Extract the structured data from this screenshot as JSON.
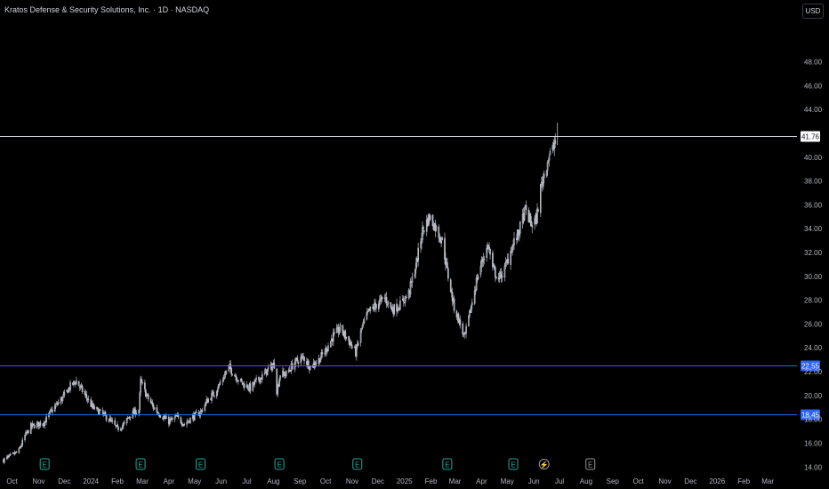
{
  "header": {
    "title": "Kratos Defense & Security Solutions, Inc. · 1D · NASDAQ",
    "currency_label": "USD"
  },
  "colors": {
    "background": "#000000",
    "candle": "#b8bcc6",
    "hline_blue": "#2962ff",
    "hline_white": "#d1d4dc",
    "axis_text": "#b2b5be",
    "earnings_icon": "#26a69a"
  },
  "price_tags": {
    "last": "41.76",
    "level_upper": "22.55",
    "level_lower": "18.45"
  },
  "event_icons": [
    {
      "label": "E",
      "type": "earnings",
      "date": "2023-11-08"
    },
    {
      "label": "E",
      "type": "earnings",
      "date": "2024-02-28"
    },
    {
      "label": "E",
      "type": "earnings",
      "date": "2024-05-08"
    },
    {
      "label": "E",
      "type": "earnings",
      "date": "2024-08-08"
    },
    {
      "label": "E",
      "type": "earnings",
      "date": "2024-11-07"
    },
    {
      "label": "E",
      "type": "earnings",
      "date": "2025-02-20"
    },
    {
      "label": "E",
      "type": "earnings",
      "date": "2025-05-08"
    },
    {
      "label": "⚡",
      "type": "dividend",
      "date": "2025-06-13"
    },
    {
      "label": "E",
      "type": "upcoming-earnings",
      "date": "2025-08-06"
    }
  ],
  "chart_data": {
    "type": "candlestick",
    "title": "Kratos Defense & Security Solutions, Inc. · 1D · NASDAQ",
    "y_axis": {
      "ticks": [
        "14.00",
        "16.00",
        "18.00",
        "20.00",
        "22.00",
        "24.00",
        "26.00",
        "28.00",
        "30.00",
        "32.00",
        "34.00",
        "36.00",
        "38.00",
        "40.00",
        "42.00",
        "44.00",
        "46.00",
        "48.00"
      ],
      "range": [
        13.2,
        50.5
      ]
    },
    "x_axis": {
      "ticks": [
        {
          "label": "Oct",
          "date": "2023-10-01"
        },
        {
          "label": "Nov",
          "date": "2023-11-01"
        },
        {
          "label": "Dec",
          "date": "2023-12-01"
        },
        {
          "label": "2024",
          "date": "2024-01-01"
        },
        {
          "label": "Feb",
          "date": "2024-02-01"
        },
        {
          "label": "Mar",
          "date": "2024-03-01"
        },
        {
          "label": "Apr",
          "date": "2024-04-01"
        },
        {
          "label": "May",
          "date": "2024-05-01"
        },
        {
          "label": "Jun",
          "date": "2024-06-01"
        },
        {
          "label": "Jul",
          "date": "2024-07-01"
        },
        {
          "label": "Aug",
          "date": "2024-08-01"
        },
        {
          "label": "Sep",
          "date": "2024-09-01"
        },
        {
          "label": "Oct",
          "date": "2024-10-01"
        },
        {
          "label": "Nov",
          "date": "2024-11-01"
        },
        {
          "label": "Dec",
          "date": "2024-12-01"
        },
        {
          "label": "2025",
          "date": "2025-01-01"
        },
        {
          "label": "Feb",
          "date": "2025-02-01"
        },
        {
          "label": "Mar",
          "date": "2025-03-01"
        },
        {
          "label": "Apr",
          "date": "2025-04-01"
        },
        {
          "label": "May",
          "date": "2025-05-01"
        },
        {
          "label": "Jun",
          "date": "2025-06-01"
        },
        {
          "label": "Jul",
          "date": "2025-07-01"
        },
        {
          "label": "Aug",
          "date": "2025-08-01"
        },
        {
          "label": "Sep",
          "date": "2025-09-01"
        },
        {
          "label": "Oct",
          "date": "2025-10-01"
        },
        {
          "label": "Nov",
          "date": "2025-11-01"
        },
        {
          "label": "Dec",
          "date": "2025-12-01"
        },
        {
          "label": "2026",
          "date": "2026-01-01"
        },
        {
          "label": "Feb",
          "date": "2026-02-01"
        },
        {
          "label": "Mar",
          "date": "2026-03-01"
        }
      ],
      "range": [
        "2023-09-20",
        "2026-03-31"
      ]
    },
    "horizontal_lines": [
      {
        "price": 41.76,
        "color": "#d1d4dc"
      },
      {
        "price": 22.55,
        "color": "#2962ff"
      },
      {
        "price": 18.45,
        "color": "#2962ff"
      }
    ],
    "closing_path": [
      [
        "2023-09-21",
        14.6
      ],
      [
        "2023-10-02",
        15.0
      ],
      [
        "2023-10-09",
        15.4
      ],
      [
        "2023-10-16",
        16.6
      ],
      [
        "2023-10-23",
        17.4
      ],
      [
        "2023-11-01",
        17.6
      ],
      [
        "2023-11-08",
        17.8
      ],
      [
        "2023-11-15",
        18.6
      ],
      [
        "2023-11-24",
        19.4
      ],
      [
        "2023-12-01",
        20.0
      ],
      [
        "2023-12-08",
        20.8
      ],
      [
        "2023-12-15",
        21.2
      ],
      [
        "2023-12-22",
        20.4
      ],
      [
        "2024-01-03",
        19.0
      ],
      [
        "2024-01-12",
        18.6
      ],
      [
        "2024-01-22",
        18.0
      ],
      [
        "2024-02-01",
        17.2
      ],
      [
        "2024-02-09",
        17.6
      ],
      [
        "2024-02-16",
        18.4
      ],
      [
        "2024-02-26",
        18.8
      ],
      [
        "2024-02-28",
        21.2
      ],
      [
        "2024-03-06",
        20.0
      ],
      [
        "2024-03-14",
        19.0
      ],
      [
        "2024-03-22",
        18.4
      ],
      [
        "2024-04-01",
        17.8
      ],
      [
        "2024-04-10",
        18.2
      ],
      [
        "2024-04-19",
        17.6
      ],
      [
        "2024-04-29",
        18.2
      ],
      [
        "2024-05-08",
        18.6
      ],
      [
        "2024-05-16",
        19.6
      ],
      [
        "2024-05-24",
        20.2
      ],
      [
        "2024-06-03",
        21.4
      ],
      [
        "2024-06-10",
        22.4
      ],
      [
        "2024-06-18",
        21.6
      ],
      [
        "2024-06-26",
        21.0
      ],
      [
        "2024-07-05",
        20.6
      ],
      [
        "2024-07-12",
        21.2
      ],
      [
        "2024-07-19",
        21.6
      ],
      [
        "2024-07-26",
        22.2
      ],
      [
        "2024-08-02",
        22.6
      ],
      [
        "2024-08-05",
        20.4
      ],
      [
        "2024-08-09",
        21.8
      ],
      [
        "2024-08-16",
        21.8
      ],
      [
        "2024-08-26",
        22.8
      ],
      [
        "2024-09-05",
        23.2
      ],
      [
        "2024-09-13",
        22.4
      ],
      [
        "2024-09-23",
        23.0
      ],
      [
        "2024-10-01",
        23.8
      ],
      [
        "2024-10-10",
        25.0
      ],
      [
        "2024-10-18",
        25.6
      ],
      [
        "2024-10-28",
        24.6
      ],
      [
        "2024-11-05",
        23.6
      ],
      [
        "2024-11-12",
        25.6
      ],
      [
        "2024-11-20",
        27.0
      ],
      [
        "2024-11-29",
        27.6
      ],
      [
        "2024-12-09",
        28.2
      ],
      [
        "2024-12-18",
        27.2
      ],
      [
        "2024-12-27",
        27.6
      ],
      [
        "2025-01-06",
        28.6
      ],
      [
        "2025-01-14",
        30.8
      ],
      [
        "2025-01-22",
        33.8
      ],
      [
        "2025-01-30",
        35.0
      ],
      [
        "2025-02-07",
        34.0
      ],
      [
        "2025-02-14",
        33.0
      ],
      [
        "2025-02-21",
        30.0
      ],
      [
        "2025-02-28",
        27.4
      ],
      [
        "2025-03-07",
        26.0
      ],
      [
        "2025-03-12",
        24.8
      ],
      [
        "2025-03-18",
        26.8
      ],
      [
        "2025-03-26",
        29.6
      ],
      [
        "2025-04-03",
        31.6
      ],
      [
        "2025-04-09",
        32.6
      ],
      [
        "2025-04-14",
        30.6
      ],
      [
        "2025-04-21",
        29.8
      ],
      [
        "2025-04-28",
        30.6
      ],
      [
        "2025-05-06",
        32.4
      ],
      [
        "2025-05-14",
        33.6
      ],
      [
        "2025-05-22",
        35.6
      ],
      [
        "2025-05-29",
        34.4
      ],
      [
        "2025-06-04",
        34.8
      ],
      [
        "2025-06-09",
        37.4
      ],
      [
        "2025-06-13",
        38.6
      ],
      [
        "2025-06-18",
        40.0
      ],
      [
        "2025-06-23",
        40.6
      ],
      [
        "2025-06-27",
        41.76
      ]
    ]
  }
}
